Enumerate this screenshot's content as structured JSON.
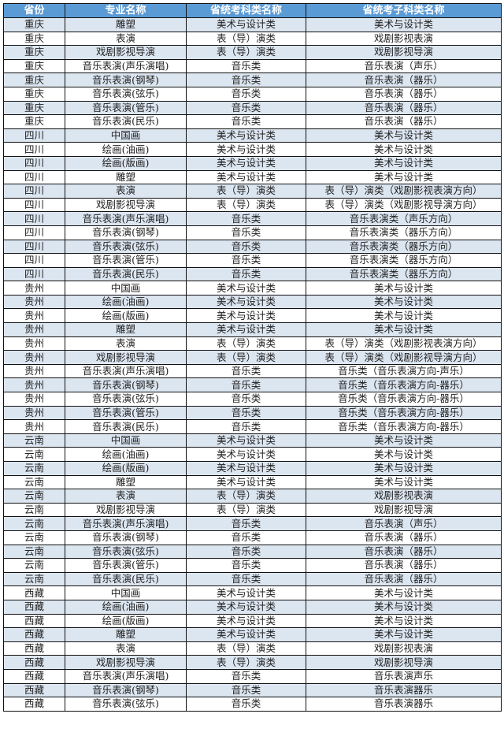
{
  "colors": {
    "header_bg": "#5b9bd5",
    "stripe_bg": "#dce6f1",
    "border": "#111111"
  },
  "headers": [
    "省份",
    "专业名称",
    "省统考科类名称",
    "省统考子科类名称"
  ],
  "rows": [
    [
      "重庆",
      "雕塑",
      "美术与设计类",
      "美术与设计类"
    ],
    [
      "重庆",
      "表演",
      "表（导）演类",
      "戏剧影视表演"
    ],
    [
      "重庆",
      "戏剧影视导演",
      "表（导）演类",
      "戏剧影视导演"
    ],
    [
      "重庆",
      "音乐表演(声乐演唱)",
      "音乐类",
      "音乐表演（声乐）"
    ],
    [
      "重庆",
      "音乐表演(钢琴)",
      "音乐类",
      "音乐表演（器乐）"
    ],
    [
      "重庆",
      "音乐表演(弦乐)",
      "音乐类",
      "音乐表演（器乐）"
    ],
    [
      "重庆",
      "音乐表演(管乐)",
      "音乐类",
      "音乐表演（器乐）"
    ],
    [
      "重庆",
      "音乐表演(民乐)",
      "音乐类",
      "音乐表演（器乐）"
    ],
    [
      "四川",
      "中国画",
      "美术与设计类",
      "美术与设计类"
    ],
    [
      "四川",
      "绘画(油画)",
      "美术与设计类",
      "美术与设计类"
    ],
    [
      "四川",
      "绘画(版画)",
      "美术与设计类",
      "美术与设计类"
    ],
    [
      "四川",
      "雕塑",
      "美术与设计类",
      "美术与设计类"
    ],
    [
      "四川",
      "表演",
      "表（导）演类",
      "表（导）演类（戏剧影视表演方向）"
    ],
    [
      "四川",
      "戏剧影视导演",
      "表（导）演类",
      "表（导）演类（戏剧影视导演方向）"
    ],
    [
      "四川",
      "音乐表演(声乐演唱)",
      "音乐类",
      "音乐表演类（声乐方向）"
    ],
    [
      "四川",
      "音乐表演(钢琴)",
      "音乐类",
      "音乐表演类（器乐方向）"
    ],
    [
      "四川",
      "音乐表演(弦乐)",
      "音乐类",
      "音乐表演类（器乐方向）"
    ],
    [
      "四川",
      "音乐表演(管乐)",
      "音乐类",
      "音乐表演类（器乐方向）"
    ],
    [
      "四川",
      "音乐表演(民乐)",
      "音乐类",
      "音乐表演类（器乐方向）"
    ],
    [
      "贵州",
      "中国画",
      "美术与设计类",
      "美术与设计类"
    ],
    [
      "贵州",
      "绘画(油画)",
      "美术与设计类",
      "美术与设计类"
    ],
    [
      "贵州",
      "绘画(版画)",
      "美术与设计类",
      "美术与设计类"
    ],
    [
      "贵州",
      "雕塑",
      "美术与设计类",
      "美术与设计类"
    ],
    [
      "贵州",
      "表演",
      "表（导）演类",
      "表（导）演类（戏剧影视表演方向）"
    ],
    [
      "贵州",
      "戏剧影视导演",
      "表（导）演类",
      "表（导）演类（戏剧影视导演方向）"
    ],
    [
      "贵州",
      "音乐表演(声乐演唱)",
      "音乐类",
      "音乐类（音乐表演方向-声乐）"
    ],
    [
      "贵州",
      "音乐表演(钢琴)",
      "音乐类",
      "音乐类（音乐表演方向-器乐）"
    ],
    [
      "贵州",
      "音乐表演(弦乐)",
      "音乐类",
      "音乐类（音乐表演方向-器乐）"
    ],
    [
      "贵州",
      "音乐表演(管乐)",
      "音乐类",
      "音乐类（音乐表演方向-器乐）"
    ],
    [
      "贵州",
      "音乐表演(民乐)",
      "音乐类",
      "音乐类（音乐表演方向-器乐）"
    ],
    [
      "云南",
      "中国画",
      "美术与设计类",
      "美术与设计类"
    ],
    [
      "云南",
      "绘画(油画)",
      "美术与设计类",
      "美术与设计类"
    ],
    [
      "云南",
      "绘画(版画)",
      "美术与设计类",
      "美术与设计类"
    ],
    [
      "云南",
      "雕塑",
      "美术与设计类",
      "美术与设计类"
    ],
    [
      "云南",
      "表演",
      "表（导）演类",
      "戏剧影视表演"
    ],
    [
      "云南",
      "戏剧影视导演",
      "表（导）演类",
      "戏剧影视导演"
    ],
    [
      "云南",
      "音乐表演(声乐演唱)",
      "音乐类",
      "音乐表演（声乐）"
    ],
    [
      "云南",
      "音乐表演(钢琴)",
      "音乐类",
      "音乐表演（器乐）"
    ],
    [
      "云南",
      "音乐表演(弦乐)",
      "音乐类",
      "音乐表演（器乐）"
    ],
    [
      "云南",
      "音乐表演(管乐)",
      "音乐类",
      "音乐表演（器乐）"
    ],
    [
      "云南",
      "音乐表演(民乐)",
      "音乐类",
      "音乐表演（器乐）"
    ],
    [
      "西藏",
      "中国画",
      "美术与设计类",
      "美术与设计类"
    ],
    [
      "西藏",
      "绘画(油画)",
      "美术与设计类",
      "美术与设计类"
    ],
    [
      "西藏",
      "绘画(版画)",
      "美术与设计类",
      "美术与设计类"
    ],
    [
      "西藏",
      "雕塑",
      "美术与设计类",
      "美术与设计类"
    ],
    [
      "西藏",
      "表演",
      "表（导）演类",
      "戏剧影视表演"
    ],
    [
      "西藏",
      "戏剧影视导演",
      "表（导）演类",
      "戏剧影视导演"
    ],
    [
      "西藏",
      "音乐表演(声乐演唱)",
      "音乐类",
      "音乐表演声乐"
    ],
    [
      "西藏",
      "音乐表演(钢琴)",
      "音乐类",
      "音乐表演器乐"
    ],
    [
      "西藏",
      "音乐表演(弦乐)",
      "音乐类",
      "音乐表演器乐"
    ]
  ]
}
